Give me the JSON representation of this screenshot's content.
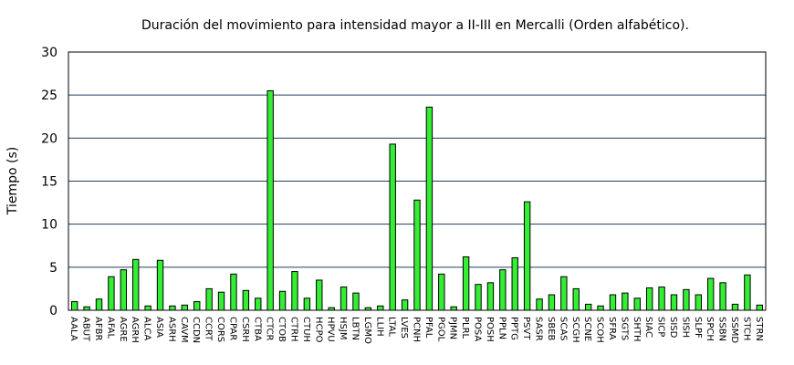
{
  "chart_data": {
    "type": "bar",
    "title": "Duración del movimiento para intensidad mayor a II-III en Mercalli (Orden alfabético).",
    "xlabel": "",
    "ylabel": "Tiempo (s)",
    "ylim": [
      0,
      30
    ],
    "yticks": [
      "0",
      "5",
      "10",
      "15",
      "20",
      "25",
      "30"
    ],
    "grid": "horizontal",
    "colors": {
      "bar": "#33ee33",
      "bar_edge": "#000000",
      "grid": "#1f3f5f"
    },
    "categories": [
      "AALA",
      "ABUT",
      "AFBR",
      "AFAL",
      "AGRE",
      "AGRH",
      "ALCA",
      "ASIA",
      "ASRH",
      "CAVM",
      "CCDN",
      "CCRT",
      "CORS",
      "CPAR",
      "CSRH",
      "CTBA",
      "CTCR",
      "CTOB",
      "CTRH",
      "CTUH",
      "HCPO",
      "HPVU",
      "HSJM",
      "LBTN",
      "LGMO",
      "LLIH",
      "LTAL",
      "LVES",
      "PCNH",
      "PFAL",
      "PGOL",
      "PJMN",
      "PLRL",
      "POSA",
      "POSH",
      "PPLN",
      "PPTG",
      "PSVT",
      "SASR",
      "SBEB",
      "SCAS",
      "SCGH",
      "SCNE",
      "SCOH",
      "SFRA",
      "SGTS",
      "SHTH",
      "SIAC",
      "SICP",
      "SISD",
      "SISH",
      "SLPF",
      "SPCH",
      "SSBN",
      "SSMD",
      "STCH",
      "STRN"
    ],
    "values": [
      1.0,
      0.4,
      1.3,
      3.9,
      4.7,
      5.9,
      0.5,
      5.8,
      0.5,
      0.6,
      1.0,
      2.5,
      2.1,
      4.2,
      2.3,
      1.4,
      25.5,
      2.2,
      4.5,
      1.4,
      3.5,
      0.3,
      2.7,
      2.0,
      0.3,
      0.5,
      19.3,
      1.2,
      12.8,
      23.6,
      4.2,
      0.4,
      6.2,
      3.0,
      3.2,
      4.7,
      6.1,
      12.6,
      1.3,
      1.8,
      3.9,
      2.5,
      0.7,
      0.5,
      1.8,
      2.0,
      1.4,
      2.6,
      2.7,
      1.8,
      2.4,
      1.8,
      3.7,
      3.2,
      0.7,
      4.1,
      0.6
    ]
  }
}
